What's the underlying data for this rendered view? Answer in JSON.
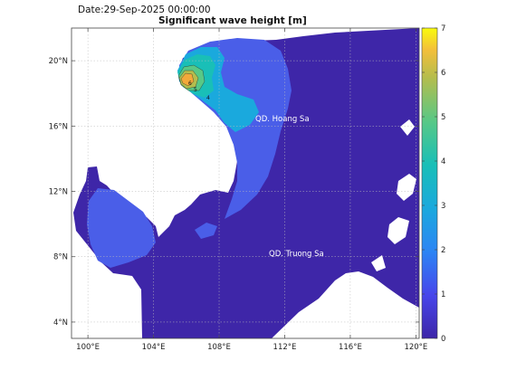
{
  "date_text": "Date:29-Sep-2025 00:00:00",
  "chart_data": {
    "type": "heatmap",
    "title": "Significant wave height [m]",
    "xlim": [
      99,
      120.2
    ],
    "ylim": [
      3,
      22
    ],
    "x_ticks": [
      "100°E",
      "104°E",
      "108°E",
      "112°E",
      "116°E",
      "120°E"
    ],
    "y_ticks": [
      "4°N",
      "8°N",
      "12°N",
      "16°N",
      "20°N"
    ],
    "colorbar": {
      "min": 0,
      "max": 7,
      "ticks": [
        "0",
        "1",
        "2",
        "3",
        "4",
        "5",
        "6",
        "7"
      ],
      "colormap": [
        "#3e26a8",
        "#4746eb",
        "#2c85f4",
        "#1aa9dd",
        "#19bfb7",
        "#58c886",
        "#b4bd4d",
        "#f3bf3a",
        "#f9fb0e"
      ]
    },
    "grid": true,
    "annotations": [
      "QD. Hoang Sa",
      "QD. Truong Sa"
    ],
    "contour_labels": [
      "4",
      "5",
      "6"
    ]
  },
  "colors": {
    "land": "#ffffff",
    "sea_low": "#3e26a8",
    "sea_mid": "#4a5ee8"
  }
}
